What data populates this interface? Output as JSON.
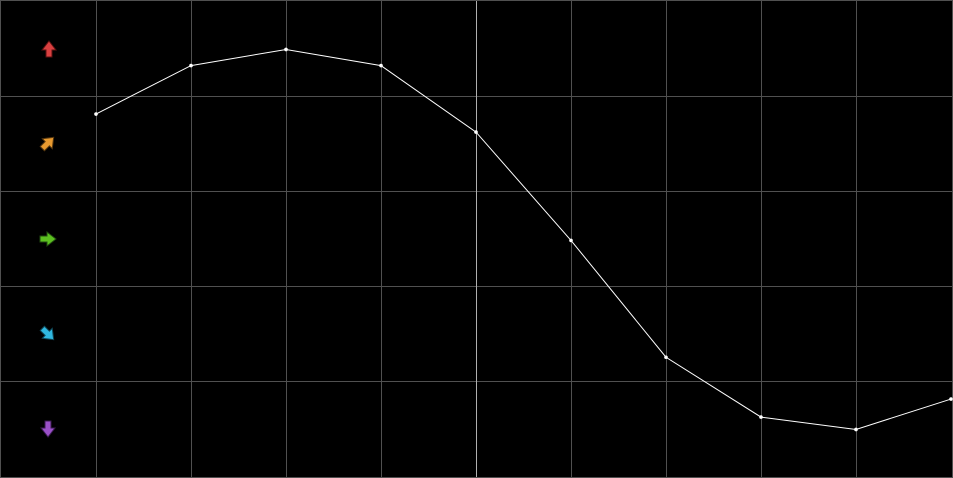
{
  "chart_data": {
    "type": "line",
    "x": [
      1,
      2,
      3,
      4,
      5,
      6,
      7,
      8,
      9,
      10
    ],
    "values": [
      3.81,
      4.32,
      4.49,
      4.32,
      3.62,
      2.48,
      1.25,
      0.62,
      0.49,
      0.81
    ],
    "color": "#ffffff",
    "xlim": [
      0,
      10
    ],
    "ylim": [
      0,
      5
    ],
    "xticks": [
      1,
      2,
      3,
      4,
      5,
      6,
      7,
      8,
      9
    ],
    "yticks": [
      1,
      2,
      3,
      4
    ],
    "highlight_x": 5,
    "grid": true,
    "grid_color": "#505050",
    "highlight_color": "#b0b0b0"
  }
}
